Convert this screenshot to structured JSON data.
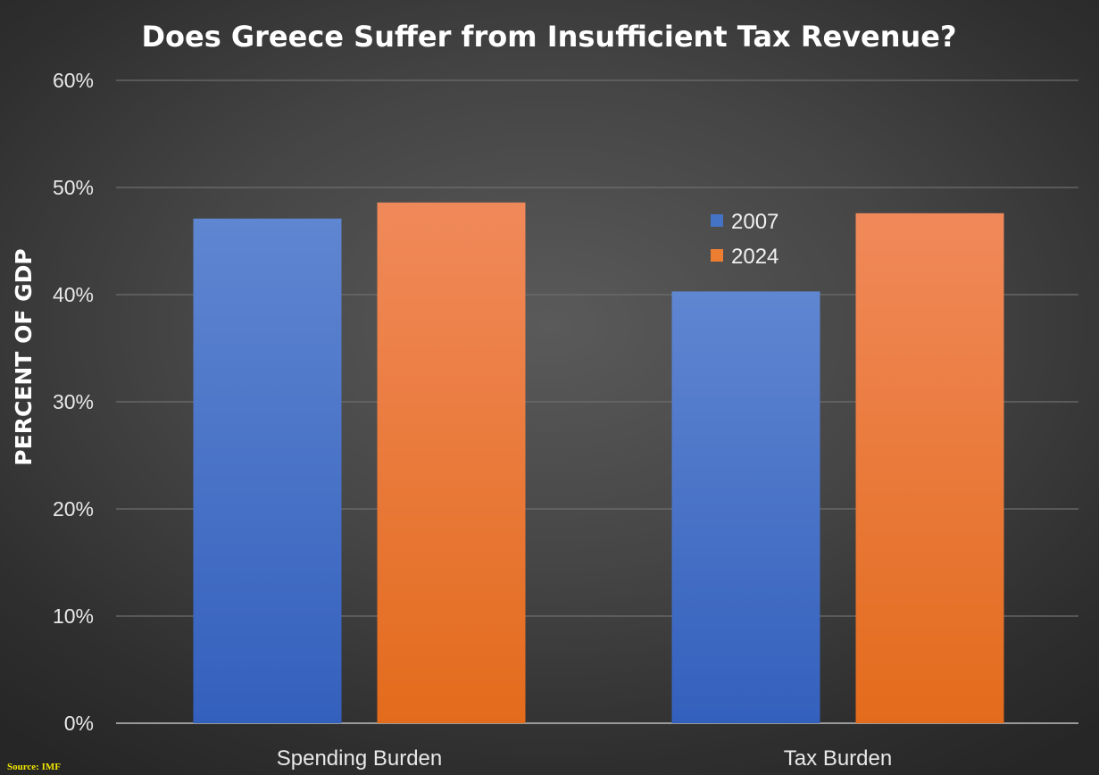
{
  "chart_data": {
    "type": "bar",
    "title": "Does Greece Suffer from Insufficient Tax Revenue?",
    "xlabel": "",
    "ylabel": "PERCENT OF GDP",
    "categories": [
      "Spending Burden",
      "Tax Burden"
    ],
    "series": [
      {
        "name": "2007",
        "values": [
          47.1,
          40.3
        ],
        "color": "#4472c4",
        "color_light": "#5f86d1",
        "color_dark": "#3460bd"
      },
      {
        "name": "2024",
        "values": [
          48.6,
          47.6
        ],
        "color": "#ed7d31",
        "color_light": "#f0895a",
        "color_dark": "#e36b1c"
      }
    ],
    "ylim": [
      0,
      60
    ],
    "yticks": [
      0,
      10,
      20,
      30,
      40,
      50,
      60
    ],
    "ytick_labels": [
      "0%",
      "10%",
      "20%",
      "30%",
      "40%",
      "50%",
      "60%"
    ],
    "grid": true,
    "legend_position": "top-right",
    "source": "Source: IMF"
  }
}
